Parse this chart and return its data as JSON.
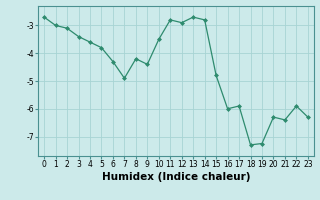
{
  "x": [
    0,
    1,
    2,
    3,
    4,
    5,
    6,
    7,
    8,
    9,
    10,
    11,
    12,
    13,
    14,
    15,
    16,
    17,
    18,
    19,
    20,
    21,
    22,
    23
  ],
  "y": [
    -2.7,
    -3.0,
    -3.1,
    -3.4,
    -3.6,
    -3.8,
    -4.3,
    -4.9,
    -4.2,
    -4.4,
    -3.5,
    -2.8,
    -2.9,
    -2.7,
    -2.8,
    -4.8,
    -6.0,
    -5.9,
    -7.3,
    -7.25,
    -6.3,
    -6.4,
    -5.9,
    -6.3
  ],
  "title": "",
  "xlabel": "Humidex (Indice chaleur)",
  "ylabel": "",
  "line_color": "#2e8b6e",
  "marker": "D",
  "marker_size": 2.0,
  "bg_color": "#cceaea",
  "grid_color": "#a8d4d4",
  "ylim": [
    -7.7,
    -2.3
  ],
  "xlim": [
    -0.5,
    23.5
  ],
  "yticks": [
    -7,
    -6,
    -5,
    -4,
    -3
  ],
  "xticks": [
    0,
    1,
    2,
    3,
    4,
    5,
    6,
    7,
    8,
    9,
    10,
    11,
    12,
    13,
    14,
    15,
    16,
    17,
    18,
    19,
    20,
    21,
    22,
    23
  ],
  "tick_fontsize": 5.5,
  "xlabel_fontsize": 7.5,
  "axis_color": "#4a9090",
  "spine_color": "#4a9090",
  "lw": 0.9
}
